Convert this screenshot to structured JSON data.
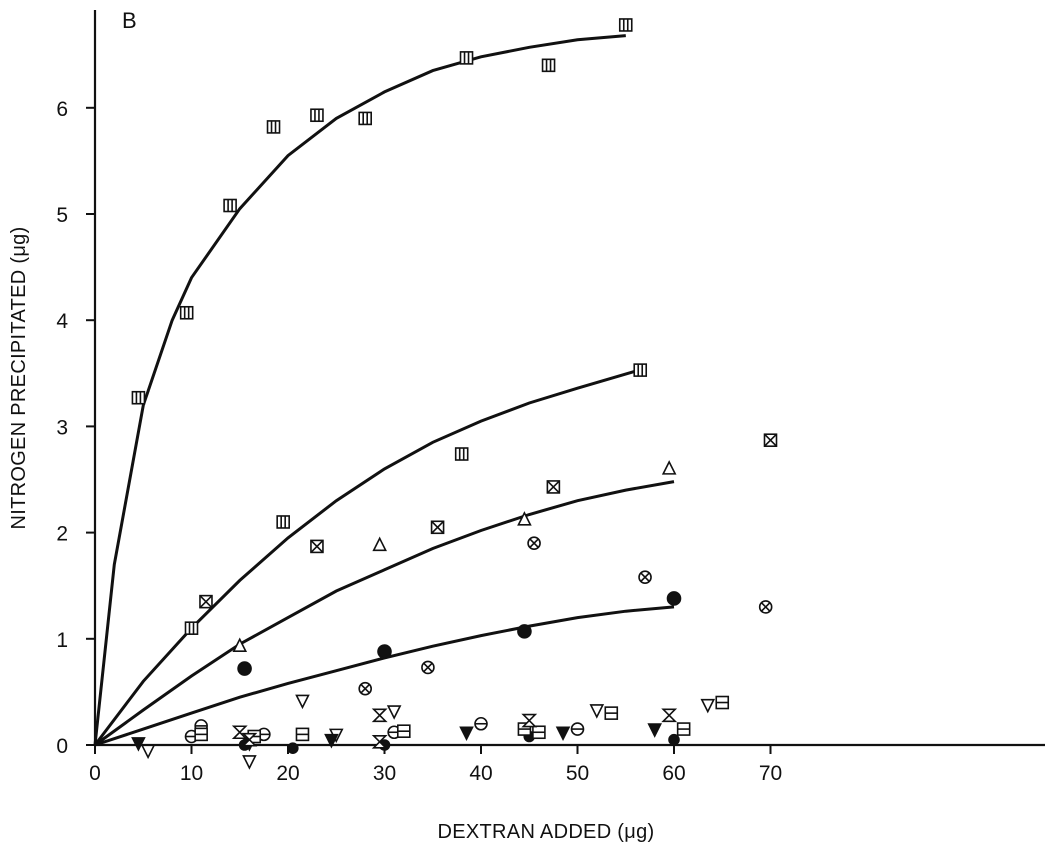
{
  "chart_data": {
    "type": "scatter",
    "panel_label": "B",
    "xlabel": "DEXTRAN ADDED (μg)",
    "ylabel": "NITROGEN PRECIPITATED (μg)",
    "xlim": [
      0,
      75
    ],
    "ylim": [
      0,
      7
    ],
    "xticks": [
      0,
      10,
      20,
      30,
      40,
      50,
      60,
      70
    ],
    "yticks": [
      0,
      1,
      2,
      3,
      4,
      5,
      6
    ],
    "grid": false,
    "curves": [
      {
        "x": [
          0,
          2,
          5,
          8,
          10,
          15,
          20,
          25,
          30,
          35,
          40,
          45,
          50,
          55
        ],
        "y": [
          0,
          1.7,
          3.2,
          4.0,
          4.4,
          5.05,
          5.55,
          5.9,
          6.15,
          6.35,
          6.48,
          6.57,
          6.64,
          6.68
        ]
      },
      {
        "x": [
          0,
          5,
          10,
          15,
          20,
          25,
          30,
          35,
          40,
          45,
          50,
          56
        ],
        "y": [
          0,
          0.6,
          1.1,
          1.55,
          1.95,
          2.3,
          2.6,
          2.85,
          3.05,
          3.22,
          3.36,
          3.52
        ]
      },
      {
        "x": [
          0,
          5,
          10,
          15,
          20,
          25,
          30,
          35,
          40,
          45,
          50,
          55,
          60
        ],
        "y": [
          0,
          0.33,
          0.65,
          0.95,
          1.2,
          1.45,
          1.65,
          1.85,
          2.02,
          2.17,
          2.3,
          2.4,
          2.48
        ]
      },
      {
        "x": [
          0,
          5,
          10,
          15,
          20,
          25,
          30,
          35,
          40,
          45,
          50,
          55,
          60
        ],
        "y": [
          0,
          0.15,
          0.3,
          0.45,
          0.58,
          0.7,
          0.82,
          0.93,
          1.03,
          1.12,
          1.2,
          1.26,
          1.3
        ]
      }
    ],
    "series": [
      {
        "marker": "square-bar",
        "points": [
          [
            4.5,
            3.27
          ],
          [
            9.5,
            4.07
          ],
          [
            14,
            5.08
          ],
          [
            18.5,
            5.82
          ],
          [
            23,
            5.93
          ],
          [
            28,
            5.9
          ],
          [
            38.5,
            6.47
          ],
          [
            47,
            6.4
          ],
          [
            55,
            6.78
          ]
        ]
      },
      {
        "marker": "square-bar",
        "points": [
          [
            10,
            1.1
          ],
          [
            19.5,
            2.1
          ],
          [
            38,
            2.74
          ],
          [
            56.5,
            3.53
          ]
        ]
      },
      {
        "marker": "square-x",
        "points": [
          [
            11.5,
            1.35
          ],
          [
            23,
            1.87
          ],
          [
            35.5,
            2.05
          ],
          [
            47.5,
            2.43
          ],
          [
            70,
            2.87
          ]
        ]
      },
      {
        "marker": "triangle-up",
        "points": [
          [
            15,
            0.93
          ],
          [
            29.5,
            1.88
          ],
          [
            44.5,
            2.12
          ],
          [
            59.5,
            2.6
          ]
        ]
      },
      {
        "marker": "circle-filled",
        "points": [
          [
            15.5,
            0.72
          ],
          [
            30,
            0.88
          ],
          [
            44.5,
            1.07
          ],
          [
            60,
            1.38
          ]
        ]
      },
      {
        "marker": "circle-x",
        "points": [
          [
            28,
            0.53
          ],
          [
            34.5,
            0.73
          ],
          [
            45.5,
            1.9
          ],
          [
            57,
            1.58
          ],
          [
            69.5,
            1.3
          ]
        ]
      },
      {
        "marker": "triangle-down",
        "points": [
          [
            5.5,
            -0.05
          ],
          [
            16,
            -0.15
          ],
          [
            21.5,
            0.42
          ],
          [
            25,
            0.1
          ],
          [
            31,
            0.32
          ],
          [
            52,
            0.33
          ],
          [
            63.5,
            0.38
          ]
        ]
      },
      {
        "marker": "triangle-down-filled",
        "points": [
          [
            4.5,
            0.02
          ],
          [
            16,
            0.02
          ],
          [
            24.5,
            0.05
          ],
          [
            38.5,
            0.12
          ],
          [
            48.5,
            0.12
          ],
          [
            58,
            0.15
          ]
        ]
      },
      {
        "marker": "circle-bar",
        "points": [
          [
            11,
            0.18
          ],
          [
            17.5,
            0.1
          ],
          [
            40,
            0.2
          ],
          [
            50,
            0.15
          ],
          [
            10,
            0.08
          ],
          [
            31,
            0.12
          ]
        ]
      },
      {
        "marker": "circle-filled-small",
        "points": [
          [
            15.5,
            0.0
          ],
          [
            20.5,
            -0.03
          ],
          [
            30,
            0.0
          ],
          [
            45,
            0.08
          ],
          [
            60,
            0.05
          ]
        ]
      },
      {
        "marker": "square-half",
        "points": [
          [
            11,
            0.1
          ],
          [
            21.5,
            0.1
          ],
          [
            32,
            0.13
          ],
          [
            44.5,
            0.15
          ],
          [
            53.5,
            0.3
          ],
          [
            61,
            0.15
          ],
          [
            65,
            0.4
          ],
          [
            46,
            0.12
          ],
          [
            16.5,
            0.08
          ]
        ]
      },
      {
        "marker": "hourglass",
        "points": [
          [
            15,
            0.12
          ],
          [
            29.5,
            0.28
          ],
          [
            45,
            0.23
          ],
          [
            59.5,
            0.28
          ],
          [
            29.5,
            0.03
          ],
          [
            16,
            0.05
          ]
        ]
      }
    ]
  }
}
